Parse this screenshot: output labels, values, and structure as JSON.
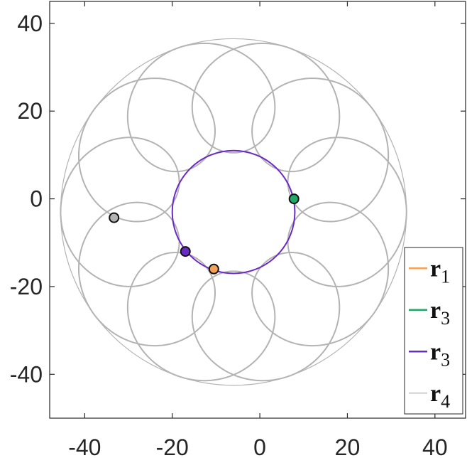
{
  "chart_data": {
    "type": "line",
    "title": "",
    "xlabel": "",
    "ylabel": "",
    "xlim": [
      -48,
      47
    ],
    "ylim": [
      -50,
      45
    ],
    "xticks": [
      -40,
      -20,
      0,
      20,
      40
    ],
    "yticks": [
      -40,
      -20,
      0,
      20,
      40
    ],
    "xtick_labels": [
      "-40",
      "-20",
      "0",
      "20",
      "40"
    ],
    "ytick_labels": [
      "-40",
      "-20",
      "0",
      "20",
      "40"
    ],
    "grid": false,
    "legend_position": "bottom-right",
    "colors": {
      "orange": "#f4a259",
      "green": "#22a867",
      "purple": "#6a2bc4",
      "gray": "#b3b3b3",
      "axis": "#262626"
    },
    "legend": [
      {
        "bold": "r",
        "sub": "1",
        "color": "#f4a259",
        "width": 2
      },
      {
        "bold": "r",
        "sub": "3",
        "color": "#22a867",
        "width": 2
      },
      {
        "bold": "r",
        "sub": "3",
        "color": "#6a2bc4",
        "width": 2
      },
      {
        "bold": "r",
        "sub": "4",
        "color": "#b3b3b3",
        "width": 1
      }
    ],
    "epicycle_curve": {
      "color": "#b3b3b3",
      "center": [
        -6,
        -3
      ],
      "outer_radius": 39.5,
      "deferent_radius": 26.5,
      "epicycle_radius": 13,
      "loops": 10
    },
    "circle_curve": {
      "color": "#6a2bc4",
      "center": [
        -6,
        -3
      ],
      "radius": 14
    },
    "points": [
      {
        "name": "orange-point",
        "x": -10.5,
        "y": -16,
        "color": "#f4a259"
      },
      {
        "name": "green-point",
        "x": 7.8,
        "y": 0,
        "color": "#22a867"
      },
      {
        "name": "purple-point",
        "x": -17,
        "y": -12,
        "color": "#6a2bc4"
      },
      {
        "name": "gray-point",
        "x": -33.3,
        "y": -4.3,
        "color": "#b3b3b3"
      }
    ]
  }
}
